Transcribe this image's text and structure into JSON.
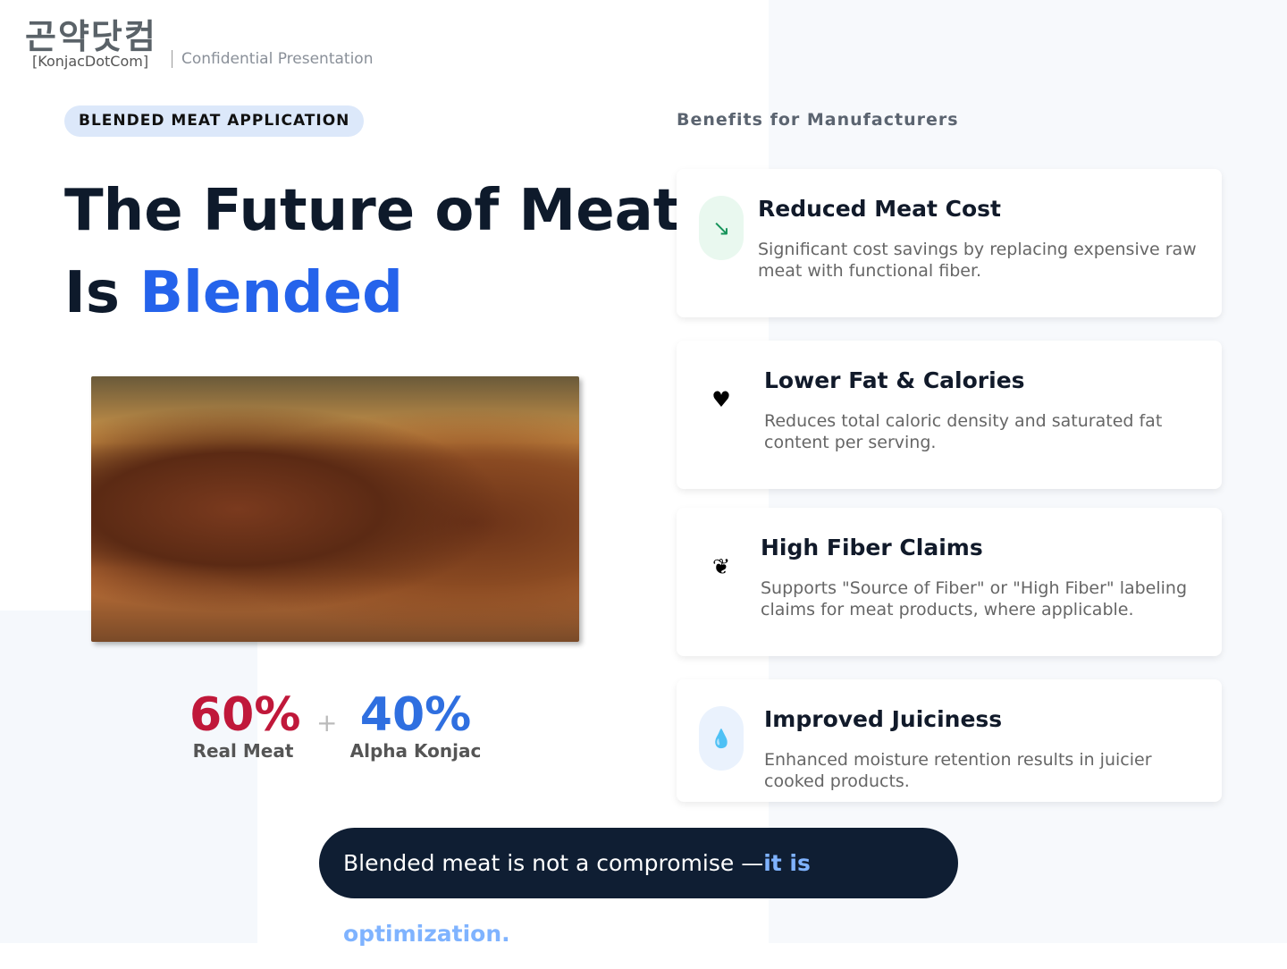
{
  "header": {
    "logo_korean": "곤약닷컴",
    "logo_english": "[KonjacDotCom]",
    "subtitle": "Confidential Presentation"
  },
  "tag": "BLENDED MEAT APPLICATION",
  "title": {
    "line1": "The Future of Meat",
    "line2_prefix": "Is ",
    "line2_highlight": "Blended"
  },
  "stats": [
    {
      "value": "60%",
      "label": "Real Meat",
      "color": "#c0183a"
    },
    {
      "value": "40%",
      "label": "Alpha Konjac",
      "color": "#2f6fe0"
    }
  ],
  "plus": "+",
  "benefits_heading": "Benefits for Manufacturers",
  "benefits": [
    {
      "icon": "trending-down-icon",
      "glyph": "↘",
      "title": "Reduced Meat Cost",
      "desc": "Significant cost savings by replacing expensive raw meat with functional fiber."
    },
    {
      "icon": "heart-pulse-icon",
      "glyph": "♥",
      "title": "Lower Fat & Calories",
      "desc": "Reduces total caloric density and saturated fat content per serving."
    },
    {
      "icon": "leaf-icon",
      "glyph": "❦",
      "title": "High Fiber Claims",
      "desc": "Supports \"Source of Fiber\" or \"High Fiber\" labeling claims for meat products, where applicable."
    },
    {
      "icon": "water-drop-icon",
      "glyph": "💧",
      "title": "Improved Juiciness",
      "desc": "Enhanced moisture retention results in juicier cooked products."
    }
  ],
  "banner": {
    "text": "Blended meat is not a compromise —",
    "highlight": "it is optimization."
  }
}
